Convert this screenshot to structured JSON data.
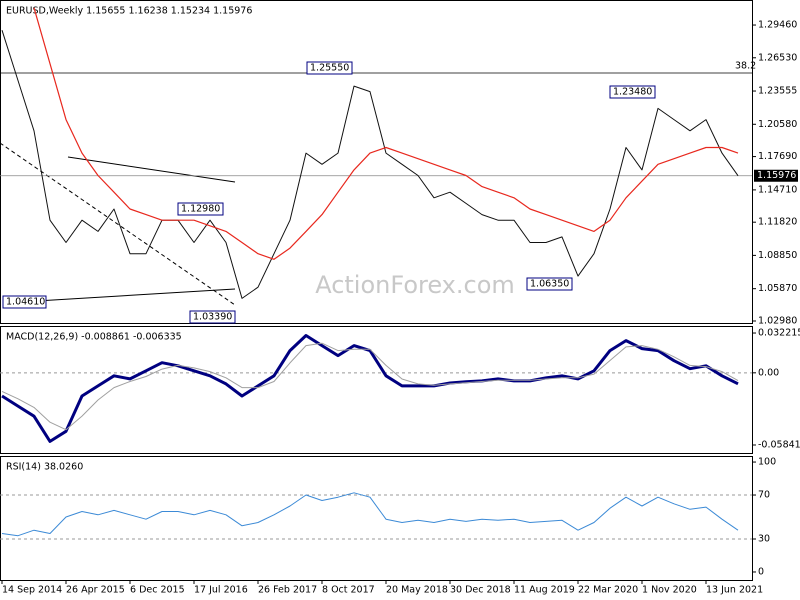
{
  "chart_data": [
    {
      "type": "line",
      "title": "EURUSD,Weekly  1.15655 1.16238 1.15234 1.15976",
      "ylim": [
        1.028,
        1.317
      ],
      "yticks": [
        {
          "value": 1.2946,
          "label": "1.29460"
        },
        {
          "value": 1.2653,
          "label": "1.26530"
        },
        1.23555,
        {
          "value": 1.2058,
          "label": "1.20580"
        },
        {
          "value": 1.1769,
          "label": "1.17690"
        },
        {
          "value": 1.1471,
          "label": "1.14710"
        },
        {
          "value": 1.1182,
          "label": "1.11820"
        },
        {
          "value": 1.0885,
          "label": "1.08850"
        },
        {
          "value": 1.0587,
          "label": "1.05870"
        },
        {
          "value": 1.0298,
          "label": "1.02980"
        }
      ],
      "last_price": 1.15976,
      "annotations": [
        "1.25550",
        "1.23480",
        "1.12980",
        "1.04610",
        "1.03390",
        "1.06350",
        "38.2"
      ],
      "watermark": "ActionForex.com",
      "series": [
        {
          "color": "#111111",
          "values": [
            1.29,
            1.245,
            1.2,
            1.12,
            1.1,
            1.12,
            1.11,
            1.13,
            1.09,
            1.09,
            1.12,
            1.12,
            1.1,
            1.12,
            1.1,
            1.05,
            1.06,
            1.09,
            1.12,
            1.18,
            1.17,
            1.18,
            1.24,
            1.235,
            1.18,
            1.17,
            1.16,
            1.14,
            1.145,
            1.135,
            1.125,
            1.12,
            1.12,
            1.1,
            1.1,
            1.105,
            1.07,
            1.09,
            1.13,
            1.185,
            1.165,
            1.22,
            1.21,
            1.2,
            1.21,
            1.18,
            1.15976
          ]
        },
        {
          "color": "#e8281e",
          "values": [
            null,
            null,
            1.31,
            1.26,
            1.21,
            1.18,
            1.16,
            1.145,
            1.13,
            1.125,
            1.12,
            1.12,
            1.12,
            1.115,
            1.11,
            1.1,
            1.09,
            1.085,
            1.095,
            1.11,
            1.125,
            1.145,
            1.165,
            1.18,
            1.185,
            1.18,
            1.175,
            1.17,
            1.165,
            1.16,
            1.15,
            1.145,
            1.14,
            1.13,
            1.125,
            1.12,
            1.115,
            1.11,
            1.12,
            1.14,
            1.155,
            1.17,
            1.175,
            1.18,
            1.185,
            1.185,
            1.18
          ]
        }
      ]
    },
    {
      "type": "line",
      "title": "MACD(12,26,9) -0.008861 -0.006335",
      "ylim": [
        -0.0649,
        0.0379
      ],
      "yticks": [
        0.032215,
        {
          "value": 0,
          "label": "0.00"
        },
        -0.058413
      ],
      "levels": [
        0
      ],
      "series": [
        {
          "color": "#000080",
          "values": [
            -0.0188,
            -0.0269,
            -0.0351,
            -0.0555,
            -0.0473,
            -0.0188,
            -0.0106,
            -0.0024,
            -0.0049,
            0.0016,
            0.0082,
            0.0057,
            0.0016,
            -0.0024,
            -0.009,
            -0.0188,
            -0.0106,
            -0.0024,
            0.018,
            0.0302,
            0.022,
            0.0139,
            0.022,
            0.018,
            -0.0024,
            -0.0106,
            -0.0106,
            -0.0106,
            -0.0082,
            -0.0073,
            -0.0065,
            -0.0049,
            -0.0065,
            -0.0065,
            -0.0041,
            -0.0024,
            -0.0049,
            0.0016,
            0.018,
            0.0261,
            0.0196,
            0.018,
            0.0098,
            0.0033,
            0.0057,
            -0.0024,
            -0.008861
          ]
        },
        {
          "color": "#a0a0a0",
          "values": [
            -0.015,
            -0.021,
            -0.028,
            -0.04,
            -0.046,
            -0.035,
            -0.022,
            -0.012,
            -0.007,
            -0.003,
            0.003,
            0.006,
            0.004,
            0.001,
            -0.004,
            -0.012,
            -0.012,
            -0.007,
            0.008,
            0.022,
            0.024,
            0.018,
            0.019,
            0.019,
            0.006,
            -0.005,
            -0.009,
            -0.01,
            -0.009,
            -0.008,
            -0.007,
            -0.006,
            -0.006,
            -0.006,
            -0.005,
            -0.004,
            -0.004,
            -0.001,
            0.01,
            0.021,
            0.022,
            0.019,
            0.013,
            0.006,
            0.005,
            0.001,
            -0.006335
          ]
        }
      ]
    },
    {
      "type": "line",
      "title": "RSI(14) 38.0260",
      "ylim": [
        -7.3,
        105.5
      ],
      "yticks": [
        100,
        70,
        30,
        0
      ],
      "levels": [
        70,
        30
      ],
      "categories": [
        "14 Sep 2014",
        null,
        null,
        null,
        "26 Apr 2015",
        null,
        null,
        null,
        "6 Dec 2015",
        null,
        null,
        null,
        "17 Jul 2016",
        null,
        null,
        null,
        "26 Feb 2017",
        null,
        null,
        null,
        "8 Oct 2017",
        null,
        null,
        null,
        "20 May 2018",
        null,
        null,
        null,
        "30 Dec 2018",
        null,
        null,
        null,
        "11 Aug 2019",
        null,
        null,
        null,
        "22 Mar 2020",
        null,
        null,
        null,
        "1 Nov 2020",
        null,
        null,
        null,
        "13 Jun 2021",
        null,
        null
      ],
      "series": [
        {
          "color": "#3c8ad6",
          "values": [
            35,
            33,
            38,
            35,
            50,
            55,
            52,
            56,
            52,
            48,
            55,
            55,
            52,
            56,
            52,
            42,
            45,
            52,
            60,
            70,
            65,
            68,
            72,
            68,
            48,
            45,
            47,
            45,
            48,
            46,
            48,
            47,
            48,
            45,
            46,
            47,
            38,
            45,
            58,
            68,
            60,
            68,
            62,
            57,
            59,
            48,
            38.026
          ]
        }
      ]
    }
  ]
}
